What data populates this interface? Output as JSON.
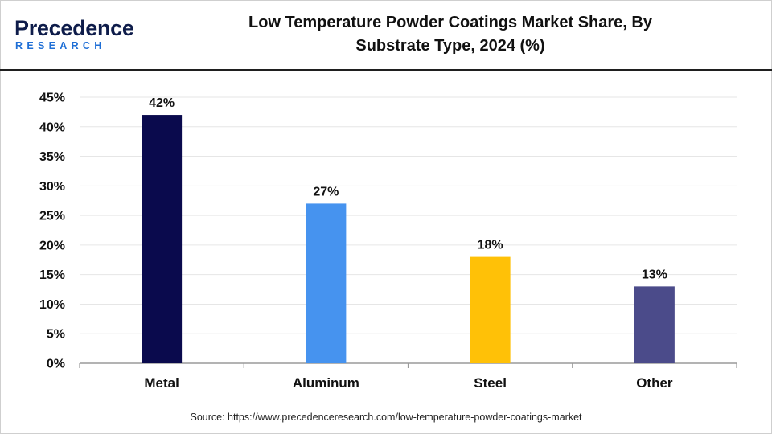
{
  "brand": {
    "name": "Precedence",
    "sub": "RESEARCH",
    "primary_color": "#0e1c4a",
    "accent_color": "#1f6fd6"
  },
  "title_lines": [
    "Low Temperature Powder Coatings Market Share, By",
    "Substrate Type, 2024 (%)"
  ],
  "source": "Source: https://www.precedenceresearch.com/low-temperature-powder-coatings-market",
  "chart_data": {
    "type": "bar",
    "title": "Low Temperature Powder Coatings Market Share, By Substrate Type, 2024 (%)",
    "xlabel": "",
    "ylabel": "",
    "categories": [
      "Metal",
      "Aluminum",
      "Steel",
      "Other"
    ],
    "values": [
      42,
      27,
      18,
      13
    ],
    "value_labels": [
      "42%",
      "27%",
      "18%",
      "13%"
    ],
    "colors": [
      "#0a0a4d",
      "#4693ef",
      "#ffc107",
      "#4b4b8a"
    ],
    "ylim": [
      0,
      45
    ],
    "yticks": [
      0,
      5,
      10,
      15,
      20,
      25,
      30,
      35,
      40,
      45
    ],
    "ytick_labels": [
      "0%",
      "5%",
      "10%",
      "15%",
      "20%",
      "25%",
      "30%",
      "35%",
      "40%",
      "45%"
    ],
    "grid": true,
    "legend": "none"
  }
}
